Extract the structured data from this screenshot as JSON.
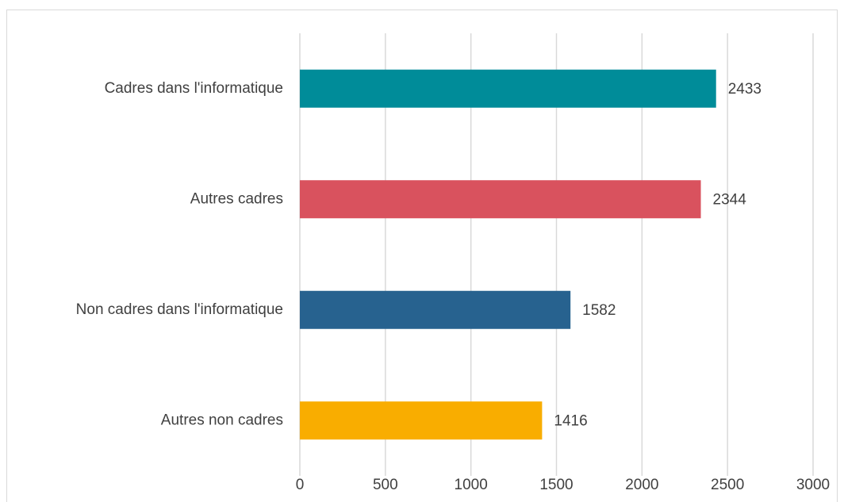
{
  "chart_data": {
    "type": "barh",
    "categories": [
      "Cadres dans l'informatique",
      "Autres cadres",
      "Non cadres dans l'informatique",
      "Autres non cadres"
    ],
    "values": [
      2433,
      2344,
      1582,
      1416
    ],
    "colors": [
      "#008c99",
      "#d9525e",
      "#27628f",
      "#f9ad00"
    ],
    "xlim": [
      0,
      3000
    ],
    "xticks": [
      0,
      500,
      1000,
      1500,
      2000,
      2500,
      3000
    ],
    "grid": true
  }
}
